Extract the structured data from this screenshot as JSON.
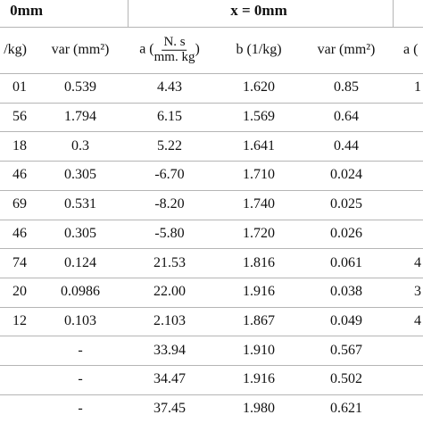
{
  "header": {
    "groups": [
      "0mm",
      "x = 0mm"
    ],
    "columns": [
      "/kg)",
      "var (mm²)",
      "b (1/kg)",
      "var (mm²)",
      "a ("
    ],
    "a_unit": {
      "prefix": "a (",
      "numerator": "N. s",
      "denominator": "mm. kg",
      "suffix": ")"
    }
  },
  "table": {
    "rows": [
      [
        "01",
        "0.539",
        "4.43",
        "1.620",
        "0.85",
        "1"
      ],
      [
        "56",
        "1.794",
        "6.15",
        "1.569",
        "0.64",
        null
      ],
      [
        "18",
        "0.3",
        "5.22",
        "1.641",
        "0.44",
        null
      ],
      [
        "46",
        "0.305",
        "-6.70",
        "1.710",
        "0.024",
        null
      ],
      [
        "69",
        "0.531",
        "-8.20",
        "1.740",
        "0.025",
        null
      ],
      [
        "46",
        "0.305",
        "-5.80",
        "1.720",
        "0.026",
        null
      ],
      [
        "74",
        "0.124",
        "21.53",
        "1.816",
        "0.061",
        "4"
      ],
      [
        "20",
        "0.0986",
        "22.00",
        "1.916",
        "0.038",
        "3"
      ],
      [
        "12",
        "0.103",
        "2.103",
        "1.867",
        "0.049",
        "4"
      ],
      [
        null,
        "-",
        "33.94",
        "1.910",
        "0.567",
        null
      ],
      [
        null,
        "-",
        "34.47",
        "1.916",
        "0.502",
        null
      ],
      [
        null,
        "-",
        "37.45",
        "1.980",
        "0.621",
        null
      ]
    ]
  }
}
